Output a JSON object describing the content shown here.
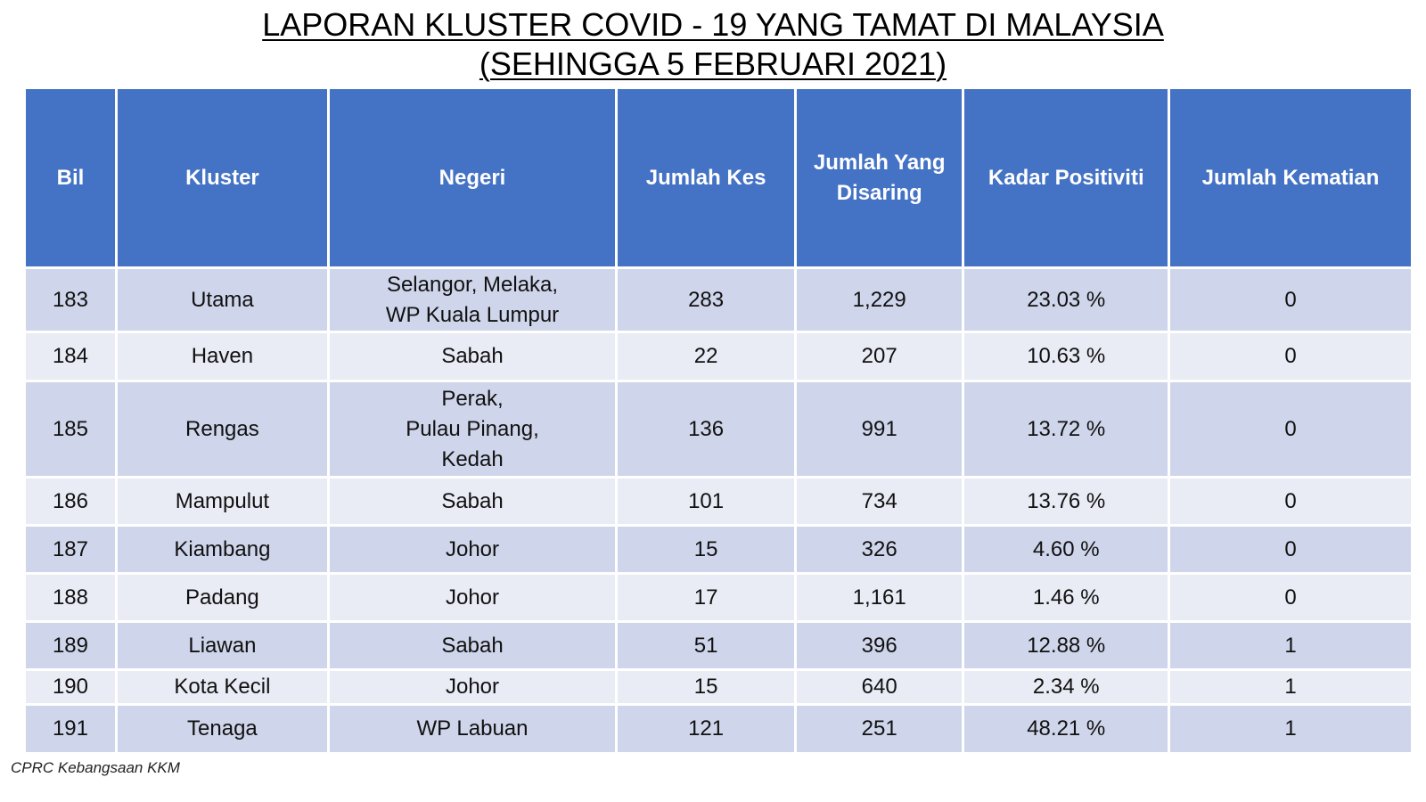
{
  "title": {
    "line1": "LAPORAN KLUSTER COVID - 19 YANG TAMAT DI MALAYSIA",
    "line2": "(SEHINGGA 5 FEBRUARI 2021)"
  },
  "table": {
    "headers": {
      "bil": "Bil",
      "kluster": "Kluster",
      "negeri": "Negeri",
      "jumlah_kes": "Jumlah Kes",
      "jumlah_disaring_line1": "Jumlah Yang",
      "jumlah_disaring_line2": "Disaring",
      "kadar_positiviti": "Kadar Positiviti",
      "jumlah_kematian": "Jumlah Kematian"
    },
    "rows": [
      {
        "bil": "183",
        "kluster": "Utama",
        "negeri": [
          "Selangor, Melaka,",
          "WP Kuala Lumpur"
        ],
        "jumlah_kes": "283",
        "jumlah_disaring": "1,229",
        "kadar_positiviti": "23.03 %",
        "jumlah_kematian": "0"
      },
      {
        "bil": "184",
        "kluster": "Haven",
        "negeri": [
          "Sabah"
        ],
        "jumlah_kes": "22",
        "jumlah_disaring": "207",
        "kadar_positiviti": "10.63 %",
        "jumlah_kematian": "0"
      },
      {
        "bil": "185",
        "kluster": "Rengas",
        "negeri": [
          "Perak,",
          "Pulau Pinang,",
          "Kedah"
        ],
        "jumlah_kes": "136",
        "jumlah_disaring": "991",
        "kadar_positiviti": "13.72 %",
        "jumlah_kematian": "0"
      },
      {
        "bil": "186",
        "kluster": "Mampulut",
        "negeri": [
          "Sabah"
        ],
        "jumlah_kes": "101",
        "jumlah_disaring": "734",
        "kadar_positiviti": "13.76 %",
        "jumlah_kematian": "0"
      },
      {
        "bil": "187",
        "kluster": "Kiambang",
        "negeri": [
          "Johor"
        ],
        "jumlah_kes": "15",
        "jumlah_disaring": "326",
        "kadar_positiviti": "4.60 %",
        "jumlah_kematian": "0"
      },
      {
        "bil": "188",
        "kluster": "Padang",
        "negeri": [
          "Johor"
        ],
        "jumlah_kes": "17",
        "jumlah_disaring": "1,161",
        "kadar_positiviti": "1.46 %",
        "jumlah_kematian": "0"
      },
      {
        "bil": "189",
        "kluster": "Liawan",
        "negeri": [
          "Sabah"
        ],
        "jumlah_kes": "51",
        "jumlah_disaring": "396",
        "kadar_positiviti": "12.88 %",
        "jumlah_kematian": "1"
      },
      {
        "bil": "190",
        "kluster": "Kota Kecil",
        "negeri": [
          "Johor"
        ],
        "jumlah_kes": "15",
        "jumlah_disaring": "640",
        "kadar_positiviti": "2.34 %",
        "jumlah_kematian": "1"
      },
      {
        "bil": "191",
        "kluster": "Tenaga",
        "negeri": [
          "WP Labuan"
        ],
        "jumlah_kes": "121",
        "jumlah_disaring": "251",
        "kadar_positiviti": "48.21 %",
        "jumlah_kematian": "1"
      }
    ]
  },
  "footer": {
    "source": "CPRC Kebangsaan KKM"
  },
  "colors": {
    "header_bg": "#4472c4",
    "row_dark": "#cfd5ea",
    "row_light": "#e9ebf5"
  }
}
